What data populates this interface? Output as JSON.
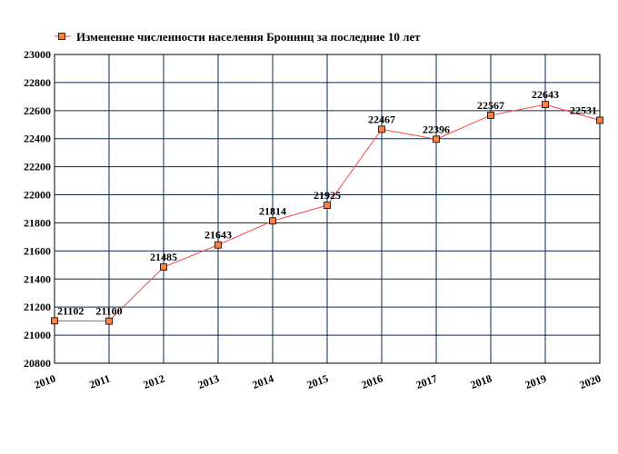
{
  "chart_data": {
    "type": "line",
    "title": "",
    "xlabel": "",
    "ylabel": "",
    "x": [
      "2010",
      "2011",
      "2012",
      "2013",
      "2014",
      "2015",
      "2016",
      "2017",
      "2018",
      "2019",
      "2020"
    ],
    "series": [
      {
        "name": "Изменение численности населения Бронниц за последние 10 лет",
        "values": [
          21102,
          21100,
          21485,
          21643,
          21814,
          21925,
          22467,
          22396,
          22567,
          22643,
          22531
        ],
        "labels": [
          "21102",
          "21100",
          "21485",
          "21643",
          "21814",
          "21925",
          "22467",
          "22396",
          "22567",
          "22643",
          "22531"
        ]
      }
    ],
    "ylim": [
      20800,
      23000
    ],
    "yticks": [
      "20800",
      "21000",
      "21200",
      "21400",
      "21600",
      "21800",
      "22000",
      "22200",
      "22400",
      "22600",
      "22800",
      "23000"
    ],
    "grid": true,
    "legend": "top-left",
    "colors": {
      "line": "#ff4040",
      "marker_fill": "#ff7f3f",
      "marker_stroke": "#000000",
      "grid": "#0f2a4f",
      "axis": "#000000"
    }
  }
}
